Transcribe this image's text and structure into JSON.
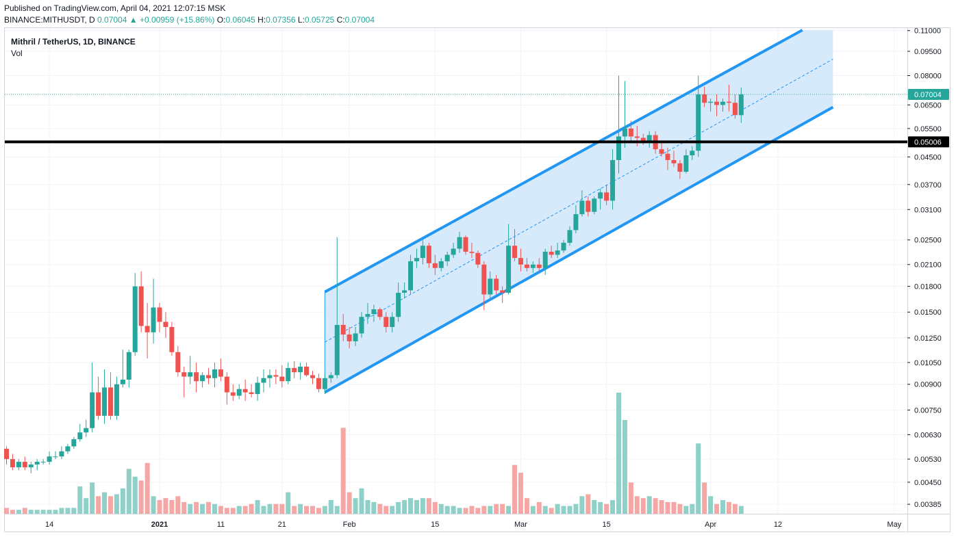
{
  "header": {
    "published": "Published on TradingView.com, April 04, 2021 12:07:15 MSK",
    "symbol_line": "BINANCE:MITHUSDT, D",
    "last": "0.07004",
    "change": "+0.00959 (+15.86%)",
    "o_label": "O:",
    "o": "0.06045",
    "h_label": "H:",
    "h": "0.07356",
    "l_label": "L:",
    "l": "0.05725",
    "c_label": "C:",
    "c": "0.07004"
  },
  "legend": {
    "title": "Mithril / TetherUS, 1D, BINANCE",
    "vol": "Vol"
  },
  "colors": {
    "up": "#26a69a",
    "down": "#ef5350",
    "vol_up": "#8fd0c8",
    "vol_down": "#f5a7a5",
    "channel": "#2196f3",
    "channel_fill": "#d3e8fb",
    "grid": "#f0f3fa"
  },
  "chart_data": {
    "type": "candlestick",
    "title": "Mithril / TetherUS, 1D, BINANCE",
    "scale": "log",
    "ylim": [
      0.0036,
      0.112
    ],
    "y_ticks": [
      "0.11000",
      "0.09500",
      "0.08000",
      "0.06500",
      "0.05500",
      "0.04500",
      "0.03700",
      "0.03100",
      "0.02500",
      "0.02100",
      "0.01800",
      "0.01500",
      "0.01250",
      "0.01050",
      "0.00900",
      "0.00750",
      "0.00630",
      "0.00530",
      "0.00450",
      "0.00385"
    ],
    "x_ticks": [
      {
        "label": "14",
        "i": 7
      },
      {
        "label": "2021",
        "i": 25
      },
      {
        "label": "11",
        "i": 35
      },
      {
        "label": "21",
        "i": 45
      },
      {
        "label": "Feb",
        "i": 56
      },
      {
        "label": "15",
        "i": 70
      },
      {
        "label": "Mar",
        "i": 84
      },
      {
        "label": "15",
        "i": 98
      },
      {
        "label": "Apr",
        "i": 115
      },
      {
        "label": "12",
        "i": 126
      },
      {
        "label": "May",
        "i": 145
      }
    ],
    "last_price_label": "0.07004",
    "horizontal_line": {
      "price": 0.05006,
      "label": "0.05006"
    },
    "channel": {
      "upper": [
        {
          "i": 52,
          "price": 0.0173
        },
        {
          "i": 130,
          "price": 0.112
        }
      ],
      "lower": [
        {
          "i": 52,
          "price": 0.0085
        },
        {
          "i": 135,
          "price": 0.064
        }
      ],
      "extend_to_i": 135
    },
    "candles": [
      {
        "o": 0.0057,
        "h": 0.0058,
        "l": 0.0051,
        "c": 0.0053
      },
      {
        "o": 0.0053,
        "h": 0.0055,
        "l": 0.0049,
        "c": 0.005
      },
      {
        "o": 0.005,
        "h": 0.0053,
        "l": 0.0049,
        "c": 0.0052
      },
      {
        "o": 0.0052,
        "h": 0.0054,
        "l": 0.0049,
        "c": 0.005
      },
      {
        "o": 0.005,
        "h": 0.0052,
        "l": 0.0048,
        "c": 0.0051
      },
      {
        "o": 0.0051,
        "h": 0.0053,
        "l": 0.0049,
        "c": 0.0052
      },
      {
        "o": 0.0052,
        "h": 0.0053,
        "l": 0.0051,
        "c": 0.0052
      },
      {
        "o": 0.0052,
        "h": 0.0056,
        "l": 0.0051,
        "c": 0.0054
      },
      {
        "o": 0.0054,
        "h": 0.0056,
        "l": 0.0053,
        "c": 0.0054
      },
      {
        "o": 0.0054,
        "h": 0.0058,
        "l": 0.0053,
        "c": 0.0056
      },
      {
        "o": 0.0056,
        "h": 0.0059,
        "l": 0.0055,
        "c": 0.0058
      },
      {
        "o": 0.0058,
        "h": 0.0062,
        "l": 0.0057,
        "c": 0.0061
      },
      {
        "o": 0.0061,
        "h": 0.0068,
        "l": 0.006,
        "c": 0.0064
      },
      {
        "o": 0.0064,
        "h": 0.007,
        "l": 0.0062,
        "c": 0.0066
      },
      {
        "o": 0.0066,
        "h": 0.0105,
        "l": 0.0064,
        "c": 0.0085
      },
      {
        "o": 0.0085,
        "h": 0.0095,
        "l": 0.007,
        "c": 0.0072
      },
      {
        "o": 0.0072,
        "h": 0.01,
        "l": 0.0068,
        "c": 0.0088
      },
      {
        "o": 0.0088,
        "h": 0.0098,
        "l": 0.007,
        "c": 0.0072
      },
      {
        "o": 0.0072,
        "h": 0.0095,
        "l": 0.007,
        "c": 0.009
      },
      {
        "o": 0.009,
        "h": 0.0115,
        "l": 0.0088,
        "c": 0.0093
      },
      {
        "o": 0.0093,
        "h": 0.0115,
        "l": 0.0088,
        "c": 0.0113
      },
      {
        "o": 0.0113,
        "h": 0.0198,
        "l": 0.011,
        "c": 0.018
      },
      {
        "o": 0.018,
        "h": 0.02,
        "l": 0.013,
        "c": 0.0136
      },
      {
        "o": 0.0136,
        "h": 0.016,
        "l": 0.0108,
        "c": 0.013
      },
      {
        "o": 0.013,
        "h": 0.019,
        "l": 0.012,
        "c": 0.0155
      },
      {
        "o": 0.0155,
        "h": 0.016,
        "l": 0.013,
        "c": 0.014
      },
      {
        "o": 0.014,
        "h": 0.015,
        "l": 0.0125,
        "c": 0.0135
      },
      {
        "o": 0.0135,
        "h": 0.014,
        "l": 0.011,
        "c": 0.0113
      },
      {
        "o": 0.0113,
        "h": 0.0118,
        "l": 0.0095,
        "c": 0.0098
      },
      {
        "o": 0.0098,
        "h": 0.0102,
        "l": 0.0082,
        "c": 0.0095
      },
      {
        "o": 0.0095,
        "h": 0.011,
        "l": 0.009,
        "c": 0.0098
      },
      {
        "o": 0.0098,
        "h": 0.0105,
        "l": 0.0085,
        "c": 0.0092
      },
      {
        "o": 0.0092,
        "h": 0.0098,
        "l": 0.0088,
        "c": 0.0096
      },
      {
        "o": 0.0096,
        "h": 0.0101,
        "l": 0.009,
        "c": 0.0094
      },
      {
        "o": 0.0094,
        "h": 0.0105,
        "l": 0.0088,
        "c": 0.01
      },
      {
        "o": 0.01,
        "h": 0.0108,
        "l": 0.0092,
        "c": 0.0095
      },
      {
        "o": 0.0095,
        "h": 0.0098,
        "l": 0.0078,
        "c": 0.0085
      },
      {
        "o": 0.0085,
        "h": 0.009,
        "l": 0.008,
        "c": 0.0083
      },
      {
        "o": 0.0083,
        "h": 0.009,
        "l": 0.0081,
        "c": 0.0087
      },
      {
        "o": 0.0087,
        "h": 0.0093,
        "l": 0.008,
        "c": 0.0085
      },
      {
        "o": 0.0085,
        "h": 0.009,
        "l": 0.0082,
        "c": 0.0084
      },
      {
        "o": 0.0084,
        "h": 0.0095,
        "l": 0.008,
        "c": 0.0091
      },
      {
        "o": 0.0091,
        "h": 0.01,
        "l": 0.0085,
        "c": 0.0094
      },
      {
        "o": 0.0094,
        "h": 0.01,
        "l": 0.0088,
        "c": 0.0096
      },
      {
        "o": 0.0096,
        "h": 0.01,
        "l": 0.009,
        "c": 0.0095
      },
      {
        "o": 0.0095,
        "h": 0.0103,
        "l": 0.0088,
        "c": 0.0092
      },
      {
        "o": 0.0092,
        "h": 0.0105,
        "l": 0.009,
        "c": 0.0101
      },
      {
        "o": 0.0101,
        "h": 0.0106,
        "l": 0.0094,
        "c": 0.0098
      },
      {
        "o": 0.0098,
        "h": 0.0105,
        "l": 0.0093,
        "c": 0.0102
      },
      {
        "o": 0.0102,
        "h": 0.0105,
        "l": 0.0095,
        "c": 0.0096
      },
      {
        "o": 0.0096,
        "h": 0.0099,
        "l": 0.009,
        "c": 0.0094
      },
      {
        "o": 0.0094,
        "h": 0.0097,
        "l": 0.0085,
        "c": 0.0087
      },
      {
        "o": 0.0087,
        "h": 0.0097,
        "l": 0.0084,
        "c": 0.0094
      },
      {
        "o": 0.0094,
        "h": 0.0098,
        "l": 0.0091,
        "c": 0.0096
      },
      {
        "o": 0.0096,
        "h": 0.0255,
        "l": 0.0094,
        "c": 0.0137
      },
      {
        "o": 0.0137,
        "h": 0.0148,
        "l": 0.0122,
        "c": 0.0128
      },
      {
        "o": 0.0128,
        "h": 0.0135,
        "l": 0.0116,
        "c": 0.0122
      },
      {
        "o": 0.0122,
        "h": 0.0135,
        "l": 0.0118,
        "c": 0.0129
      },
      {
        "o": 0.0129,
        "h": 0.015,
        "l": 0.0125,
        "c": 0.0145
      },
      {
        "o": 0.0145,
        "h": 0.016,
        "l": 0.0138,
        "c": 0.0148
      },
      {
        "o": 0.0148,
        "h": 0.0158,
        "l": 0.014,
        "c": 0.0153
      },
      {
        "o": 0.0153,
        "h": 0.0155,
        "l": 0.0142,
        "c": 0.0145
      },
      {
        "o": 0.0145,
        "h": 0.015,
        "l": 0.013,
        "c": 0.0135
      },
      {
        "o": 0.0135,
        "h": 0.015,
        "l": 0.013,
        "c": 0.0145
      },
      {
        "o": 0.0145,
        "h": 0.0185,
        "l": 0.014,
        "c": 0.0172
      },
      {
        "o": 0.0172,
        "h": 0.0185,
        "l": 0.0165,
        "c": 0.0175
      },
      {
        "o": 0.0175,
        "h": 0.0225,
        "l": 0.017,
        "c": 0.0215
      },
      {
        "o": 0.0215,
        "h": 0.0235,
        "l": 0.0205,
        "c": 0.022
      },
      {
        "o": 0.022,
        "h": 0.0255,
        "l": 0.021,
        "c": 0.024
      },
      {
        "o": 0.024,
        "h": 0.0245,
        "l": 0.0205,
        "c": 0.0212
      },
      {
        "o": 0.0212,
        "h": 0.0225,
        "l": 0.0195,
        "c": 0.0205
      },
      {
        "o": 0.0205,
        "h": 0.022,
        "l": 0.02,
        "c": 0.0215
      },
      {
        "o": 0.0215,
        "h": 0.023,
        "l": 0.0208,
        "c": 0.0225
      },
      {
        "o": 0.0225,
        "h": 0.0245,
        "l": 0.022,
        "c": 0.0235
      },
      {
        "o": 0.0235,
        "h": 0.0265,
        "l": 0.0228,
        "c": 0.0255
      },
      {
        "o": 0.0255,
        "h": 0.0258,
        "l": 0.0225,
        "c": 0.023
      },
      {
        "o": 0.023,
        "h": 0.0245,
        "l": 0.022,
        "c": 0.0228
      },
      {
        "o": 0.0228,
        "h": 0.0232,
        "l": 0.0205,
        "c": 0.021
      },
      {
        "o": 0.021,
        "h": 0.0215,
        "l": 0.0152,
        "c": 0.017
      },
      {
        "o": 0.017,
        "h": 0.02,
        "l": 0.0165,
        "c": 0.019
      },
      {
        "o": 0.019,
        "h": 0.0195,
        "l": 0.017,
        "c": 0.0175
      },
      {
        "o": 0.0175,
        "h": 0.018,
        "l": 0.016,
        "c": 0.0172
      },
      {
        "o": 0.0172,
        "h": 0.028,
        "l": 0.017,
        "c": 0.024
      },
      {
        "o": 0.024,
        "h": 0.027,
        "l": 0.0215,
        "c": 0.022
      },
      {
        "o": 0.022,
        "h": 0.0235,
        "l": 0.02,
        "c": 0.021
      },
      {
        "o": 0.021,
        "h": 0.022,
        "l": 0.02,
        "c": 0.0205
      },
      {
        "o": 0.0205,
        "h": 0.0215,
        "l": 0.0198,
        "c": 0.021
      },
      {
        "o": 0.021,
        "h": 0.022,
        "l": 0.02,
        "c": 0.0205
      },
      {
        "o": 0.0205,
        "h": 0.0235,
        "l": 0.0195,
        "c": 0.023
      },
      {
        "o": 0.023,
        "h": 0.024,
        "l": 0.022,
        "c": 0.0225
      },
      {
        "o": 0.0225,
        "h": 0.0245,
        "l": 0.022,
        "c": 0.0232
      },
      {
        "o": 0.0232,
        "h": 0.025,
        "l": 0.0228,
        "c": 0.0245
      },
      {
        "o": 0.0245,
        "h": 0.0275,
        "l": 0.024,
        "c": 0.0268
      },
      {
        "o": 0.0268,
        "h": 0.032,
        "l": 0.0262,
        "c": 0.03
      },
      {
        "o": 0.03,
        "h": 0.0355,
        "l": 0.0295,
        "c": 0.033
      },
      {
        "o": 0.033,
        "h": 0.034,
        "l": 0.0295,
        "c": 0.0305
      },
      {
        "o": 0.0305,
        "h": 0.034,
        "l": 0.03,
        "c": 0.0335
      },
      {
        "o": 0.0335,
        "h": 0.036,
        "l": 0.031,
        "c": 0.035
      },
      {
        "o": 0.035,
        "h": 0.037,
        "l": 0.032,
        "c": 0.033
      },
      {
        "o": 0.033,
        "h": 0.0475,
        "l": 0.031,
        "c": 0.044
      },
      {
        "o": 0.044,
        "h": 0.08,
        "l": 0.04,
        "c": 0.052
      },
      {
        "o": 0.052,
        "h": 0.077,
        "l": 0.048,
        "c": 0.055
      },
      {
        "o": 0.055,
        "h": 0.058,
        "l": 0.05,
        "c": 0.052
      },
      {
        "o": 0.052,
        "h": 0.056,
        "l": 0.0485,
        "c": 0.0515
      },
      {
        "o": 0.0515,
        "h": 0.053,
        "l": 0.049,
        "c": 0.0505
      },
      {
        "o": 0.0505,
        "h": 0.054,
        "l": 0.048,
        "c": 0.0525
      },
      {
        "o": 0.0525,
        "h": 0.054,
        "l": 0.046,
        "c": 0.0475
      },
      {
        "o": 0.0475,
        "h": 0.0505,
        "l": 0.045,
        "c": 0.046
      },
      {
        "o": 0.046,
        "h": 0.048,
        "l": 0.041,
        "c": 0.044
      },
      {
        "o": 0.044,
        "h": 0.047,
        "l": 0.042,
        "c": 0.043
      },
      {
        "o": 0.043,
        "h": 0.044,
        "l": 0.0385,
        "c": 0.0405
      },
      {
        "o": 0.0405,
        "h": 0.0475,
        "l": 0.04,
        "c": 0.0455
      },
      {
        "o": 0.0455,
        "h": 0.0485,
        "l": 0.044,
        "c": 0.047
      },
      {
        "o": 0.047,
        "h": 0.08,
        "l": 0.045,
        "c": 0.07
      },
      {
        "o": 0.07,
        "h": 0.074,
        "l": 0.064,
        "c": 0.066
      },
      {
        "o": 0.066,
        "h": 0.068,
        "l": 0.062,
        "c": 0.0665
      },
      {
        "o": 0.0665,
        "h": 0.07,
        "l": 0.06,
        "c": 0.065
      },
      {
        "o": 0.065,
        "h": 0.068,
        "l": 0.062,
        "c": 0.0665
      },
      {
        "o": 0.0665,
        "h": 0.075,
        "l": 0.062,
        "c": 0.066
      },
      {
        "o": 0.066,
        "h": 0.07,
        "l": 0.059,
        "c": 0.0605
      },
      {
        "o": 0.06045,
        "h": 0.07356,
        "l": 0.05725,
        "c": 0.07004
      }
    ],
    "volume": [
      3,
      2,
      2,
      3,
      2,
      2,
      2,
      2,
      2,
      3,
      3,
      3,
      14,
      8,
      16,
      9,
      11,
      9,
      10,
      13,
      23,
      19,
      17,
      26,
      9,
      7,
      8,
      7,
      9,
      6,
      5,
      6,
      5,
      6,
      5,
      4,
      3,
      3,
      4,
      4,
      5,
      7,
      4,
      5,
      5,
      5,
      11,
      4,
      5,
      4,
      4,
      3,
      4,
      7,
      4,
      44,
      11,
      8,
      13,
      7,
      6,
      5,
      4,
      4,
      6,
      7,
      8,
      7,
      8,
      8,
      6,
      5,
      4,
      4,
      3,
      3,
      4,
      3,
      4,
      4,
      5,
      5,
      4,
      25,
      21,
      8,
      4,
      6,
      4,
      3,
      5,
      4,
      4,
      5,
      9,
      10,
      7,
      6,
      5,
      7,
      62,
      48,
      16,
      9,
      8,
      9,
      8,
      7,
      6,
      6,
      5,
      4,
      5,
      36,
      16,
      9,
      5,
      7,
      6,
      5,
      4
    ]
  }
}
